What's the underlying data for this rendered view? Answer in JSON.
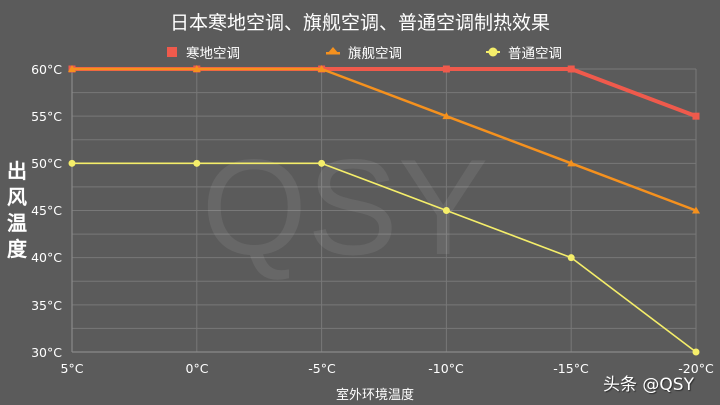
{
  "header": {
    "title": "日本寒地空调、旗舰空调、普通空调制热效果"
  },
  "legend": [
    {
      "label": "寒地空调",
      "marker": "square-icon",
      "color": "#ef5a4c"
    },
    {
      "label": "旗舰空调",
      "marker": "triangle-icon",
      "color": "#f5911e"
    },
    {
      "label": "普通空调",
      "marker": "circle-icon",
      "color": "#f5ee6a"
    }
  ],
  "axes": {
    "y_title_chars": [
      "出",
      "风",
      "温",
      "度"
    ],
    "x_title": "室外环境温度",
    "y_ticks": [
      "60°C",
      "55°C",
      "50°C",
      "45°C",
      "40°C",
      "35°C",
      "30°C"
    ],
    "x_ticks": [
      "5°C",
      "0°C",
      "-5°C",
      "-10°C",
      "-15°C",
      "-20°C"
    ]
  },
  "watermark": "QSY",
  "credit": "头条 @QSY",
  "colors": {
    "background": "#5b5b5b",
    "grid": "#787878",
    "axis": "#8a8a8a"
  },
  "chart_data": {
    "type": "line",
    "title": "日本寒地空调、旗舰空调、普通空调制热效果",
    "xlabel": "室外环境温度",
    "ylabel": "出风温度",
    "categories": [
      "5°C",
      "0°C",
      "-5°C",
      "-10°C",
      "-15°C",
      "-20°C"
    ],
    "series": [
      {
        "name": "寒地空调",
        "color": "#ef5a4c",
        "marker": "square",
        "values": [
          60,
          60,
          60,
          60,
          60,
          55
        ]
      },
      {
        "name": "旗舰空调",
        "color": "#f5911e",
        "marker": "triangle",
        "values": [
          60,
          60,
          60,
          55,
          50,
          45
        ]
      },
      {
        "name": "普通空调",
        "color": "#f5ee6a",
        "marker": "circle",
        "values": [
          50,
          50,
          50,
          45,
          40,
          30
        ]
      }
    ],
    "ylim": [
      30,
      60
    ],
    "y_major_step": 5,
    "y_minor_step": 2.5,
    "grid": true,
    "legend_position": "top"
  }
}
